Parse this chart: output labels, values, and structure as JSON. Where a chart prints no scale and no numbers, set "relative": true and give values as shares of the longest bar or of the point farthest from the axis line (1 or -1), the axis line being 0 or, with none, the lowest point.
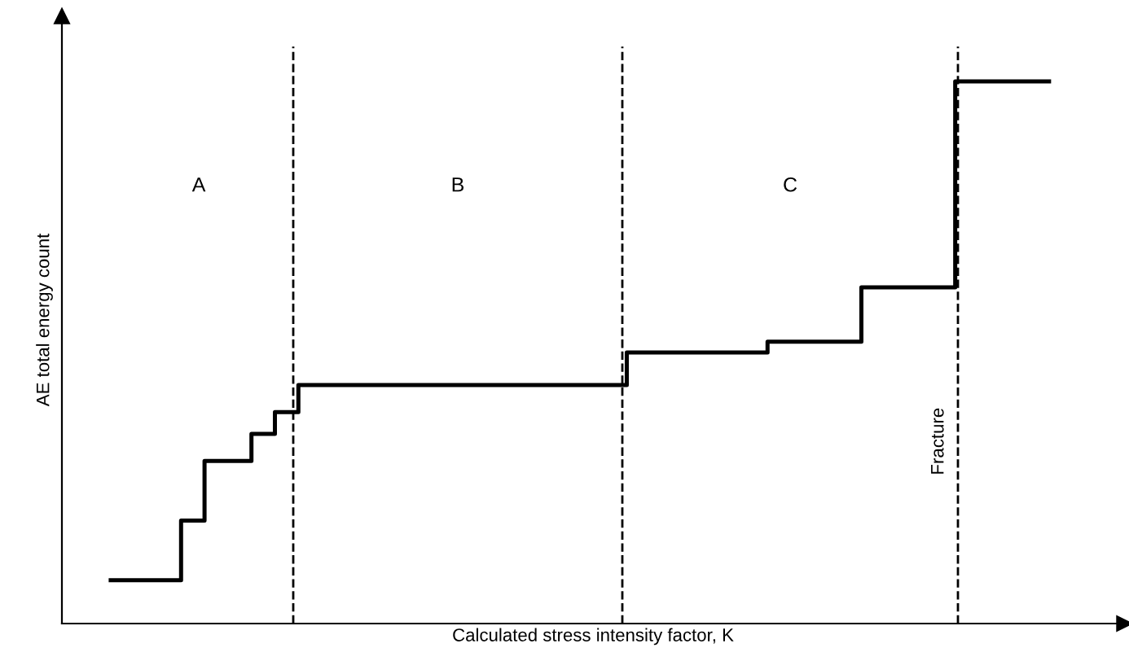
{
  "chart_data": {
    "type": "step",
    "relative": true,
    "xlabel": "Calculated stress intensity factor, K",
    "ylabel": "AE total energy count",
    "categories": [
      null,
      null,
      null,
      null,
      null,
      null,
      null,
      null,
      null,
      null,
      null,
      null,
      null,
      null,
      null,
      null,
      null,
      null,
      null,
      null,
      null,
      null,
      null,
      null,
      null,
      null,
      null,
      null,
      null,
      null,
      null,
      null,
      null,
      null,
      null,
      null,
      null,
      null,
      null,
      null,
      null
    ],
    "series": [
      {
        "color": "#000000",
        "values": [
          0.08,
          0.08,
          0.08,
          0.19,
          0.3,
          0.3,
          0.35,
          0.39,
          0.44,
          0.44,
          0.44,
          0.44,
          0.44,
          0.44,
          0.44,
          0.44,
          0.44,
          0.44,
          0.44,
          0.44,
          0.44,
          0.44,
          0.5,
          0.5,
          0.5,
          0.5,
          0.5,
          0.5,
          0.52,
          0.52,
          0.52,
          0.52,
          0.62,
          0.62,
          0.62,
          0.62,
          1.0,
          1.0,
          1.0,
          1.0,
          1.0
        ]
      }
    ],
    "annotations": [
      "A",
      "B",
      "C",
      "Fracture"
    ],
    "line_style": "solid",
    "marker": "none"
  }
}
